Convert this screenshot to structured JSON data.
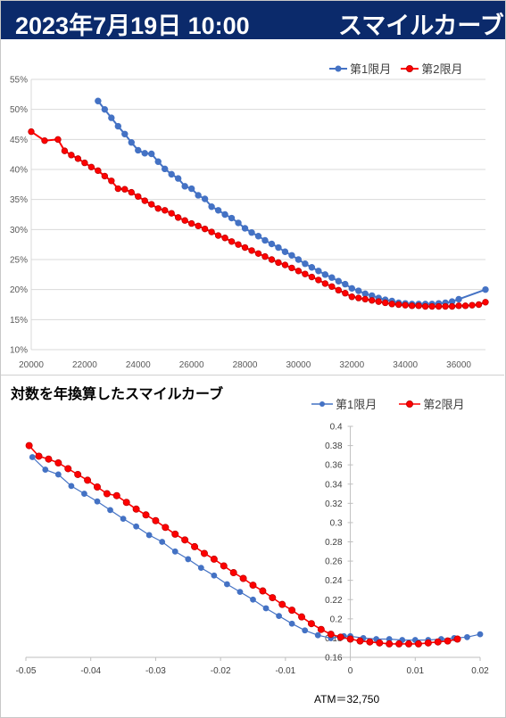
{
  "header": {
    "date": "2023年7月19日 10:00",
    "title": "スマイルカーブ"
  },
  "chart_data": [
    {
      "type": "line",
      "title": "",
      "xlabel": "",
      "ylabel": "",
      "xlim": [
        20000,
        37000
      ],
      "ylim": [
        0.1,
        0.55
      ],
      "x_ticks": [
        "20000",
        "22000",
        "24000",
        "26000",
        "28000",
        "30000",
        "32000",
        "34000",
        "36000"
      ],
      "y_ticks": [
        "10%",
        "15%",
        "20%",
        "25%",
        "30%",
        "35%",
        "40%",
        "45%",
        "50%",
        "55%"
      ],
      "legend_position": "top-right",
      "series": [
        {
          "name": "第1限月",
          "color": "#4472c4",
          "x": [
            22500,
            22750,
            23000,
            23250,
            23500,
            23750,
            24000,
            24250,
            24500,
            24750,
            25000,
            25250,
            25500,
            25750,
            26000,
            26250,
            26500,
            26750,
            27000,
            27250,
            27500,
            27750,
            28000,
            28250,
            28500,
            28750,
            29000,
            29250,
            29500,
            29750,
            30000,
            30250,
            30500,
            30750,
            31000,
            31250,
            31500,
            31750,
            32000,
            32250,
            32500,
            32750,
            33000,
            33250,
            33500,
            33750,
            34000,
            34250,
            34500,
            34750,
            35000,
            35250,
            35500,
            35750,
            36000,
            37000
          ],
          "y": [
            0.514,
            0.5,
            0.486,
            0.472,
            0.459,
            0.445,
            0.432,
            0.427,
            0.426,
            0.413,
            0.401,
            0.392,
            0.385,
            0.372,
            0.368,
            0.357,
            0.351,
            0.338,
            0.332,
            0.325,
            0.319,
            0.311,
            0.302,
            0.295,
            0.289,
            0.282,
            0.276,
            0.27,
            0.263,
            0.257,
            0.25,
            0.243,
            0.237,
            0.231,
            0.225,
            0.22,
            0.214,
            0.209,
            0.202,
            0.198,
            0.193,
            0.19,
            0.186,
            0.183,
            0.181,
            0.178,
            0.177,
            0.176,
            0.176,
            0.176,
            0.176,
            0.177,
            0.178,
            0.18,
            0.184,
            0.2
          ]
        },
        {
          "name": "第2限月",
          "color": "#ff0000",
          "x": [
            20000,
            20500,
            21000,
            21250,
            21500,
            21750,
            22000,
            22250,
            22500,
            22750,
            23000,
            23250,
            23500,
            23750,
            24000,
            24250,
            24500,
            24750,
            25000,
            25250,
            25500,
            25750,
            26000,
            26250,
            26500,
            26750,
            27000,
            27250,
            27500,
            27750,
            28000,
            28250,
            28500,
            28750,
            29000,
            29250,
            29500,
            29750,
            30000,
            30250,
            30500,
            30750,
            31000,
            31250,
            31500,
            31750,
            32000,
            32250,
            32500,
            32750,
            33000,
            33250,
            33500,
            33750,
            34000,
            34250,
            34500,
            34750,
            35000,
            35250,
            35500,
            35750,
            36000,
            36250,
            36500,
            36750,
            37000
          ],
          "y": [
            0.463,
            0.448,
            0.45,
            0.431,
            0.424,
            0.418,
            0.411,
            0.404,
            0.398,
            0.389,
            0.381,
            0.368,
            0.367,
            0.362,
            0.355,
            0.348,
            0.342,
            0.335,
            0.332,
            0.327,
            0.32,
            0.315,
            0.31,
            0.306,
            0.301,
            0.296,
            0.29,
            0.286,
            0.28,
            0.275,
            0.27,
            0.265,
            0.26,
            0.255,
            0.25,
            0.245,
            0.241,
            0.236,
            0.231,
            0.226,
            0.221,
            0.216,
            0.21,
            0.205,
            0.199,
            0.194,
            0.188,
            0.186,
            0.184,
            0.182,
            0.18,
            0.178,
            0.176,
            0.175,
            0.174,
            0.173,
            0.173,
            0.172,
            0.172,
            0.172,
            0.172,
            0.172,
            0.173,
            0.173,
            0.174,
            0.175,
            0.179
          ]
        }
      ]
    },
    {
      "type": "line",
      "title": "対数を年換算したスマイルカーブ",
      "xlabel": "",
      "ylabel": "",
      "xlim": [
        -0.05,
        0.02
      ],
      "ylim": [
        0.16,
        0.4
      ],
      "x_ticks": [
        "-0.05",
        "-0.04",
        "-0.03",
        "-0.02",
        "-0.01",
        "0",
        "0.01",
        "0.02"
      ],
      "y_ticks": [
        "0.16",
        "0.18",
        "0.2",
        "0.22",
        "0.24",
        "0.26",
        "0.28",
        "0.3",
        "0.32",
        "0.34",
        "0.36",
        "0.38",
        "0.4"
      ],
      "legend_position": "top-right",
      "annotation": "ATM＝32,750",
      "series": [
        {
          "name": "第1限月",
          "color": "#4472c4",
          "x": [
            -0.049,
            -0.047,
            -0.045,
            -0.043,
            -0.041,
            -0.039,
            -0.037,
            -0.035,
            -0.033,
            -0.031,
            -0.029,
            -0.027,
            -0.025,
            -0.023,
            -0.021,
            -0.019,
            -0.017,
            -0.015,
            -0.013,
            -0.011,
            -0.009,
            -0.007,
            -0.005,
            -0.003,
            -0.001,
            0.0,
            0.002,
            0.004,
            0.006,
            0.008,
            0.01,
            0.012,
            0.014,
            0.016,
            0.018,
            0.02
          ],
          "y": [
            0.368,
            0.355,
            0.35,
            0.338,
            0.33,
            0.322,
            0.313,
            0.304,
            0.296,
            0.287,
            0.28,
            0.27,
            0.262,
            0.253,
            0.245,
            0.236,
            0.228,
            0.22,
            0.211,
            0.203,
            0.195,
            0.188,
            0.183,
            0.18,
            0.182,
            0.182,
            0.18,
            0.179,
            0.179,
            0.178,
            0.178,
            0.178,
            0.179,
            0.18,
            0.181,
            0.184
          ]
        },
        {
          "name": "第2限月",
          "color": "#ff0000",
          "x": [
            -0.0495,
            -0.048,
            -0.0465,
            -0.045,
            -0.0435,
            -0.042,
            -0.0405,
            -0.039,
            -0.0375,
            -0.036,
            -0.0345,
            -0.033,
            -0.0315,
            -0.03,
            -0.0285,
            -0.027,
            -0.0255,
            -0.024,
            -0.0225,
            -0.021,
            -0.0195,
            -0.018,
            -0.0165,
            -0.015,
            -0.0135,
            -0.012,
            -0.0105,
            -0.009,
            -0.0075,
            -0.006,
            -0.0045,
            -0.003,
            -0.0015,
            0.0,
            0.0015,
            0.003,
            0.0045,
            0.006,
            0.0075,
            0.009,
            0.0105,
            0.012,
            0.0135,
            0.015,
            0.0165
          ],
          "y": [
            0.38,
            0.369,
            0.366,
            0.362,
            0.356,
            0.35,
            0.344,
            0.337,
            0.33,
            0.328,
            0.321,
            0.314,
            0.308,
            0.302,
            0.295,
            0.288,
            0.282,
            0.275,
            0.268,
            0.262,
            0.255,
            0.248,
            0.242,
            0.235,
            0.229,
            0.222,
            0.215,
            0.209,
            0.202,
            0.195,
            0.189,
            0.184,
            0.181,
            0.179,
            0.177,
            0.176,
            0.175,
            0.174,
            0.174,
            0.174,
            0.174,
            0.175,
            0.176,
            0.177,
            0.179
          ]
        }
      ]
    }
  ]
}
